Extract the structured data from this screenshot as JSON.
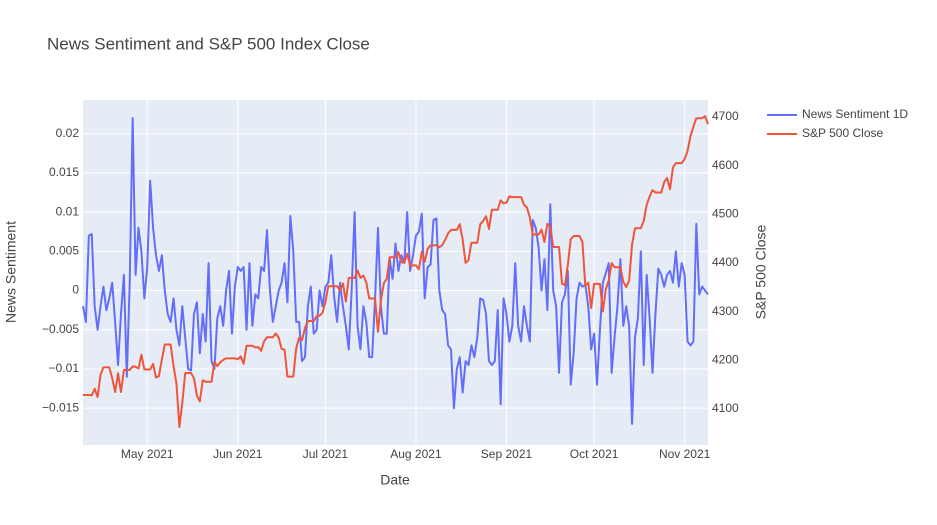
{
  "chart_data": {
    "type": "line",
    "title": "News Sentiment and S&P 500 Index Close",
    "x_label": "Date",
    "y_label": "News Sentiment",
    "y2_label": "S&P 500 Close",
    "x": [
      "2021-04-09",
      "2021-04-10",
      "2021-04-11",
      "2021-04-12",
      "2021-04-13",
      "2021-04-14",
      "2021-04-15",
      "2021-04-16",
      "2021-04-17",
      "2021-04-18",
      "2021-04-19",
      "2021-04-20",
      "2021-04-21",
      "2021-04-22",
      "2021-04-23",
      "2021-04-24",
      "2021-04-25",
      "2021-04-26",
      "2021-04-27",
      "2021-04-28",
      "2021-04-29",
      "2021-04-30",
      "2021-05-01",
      "2021-05-02",
      "2021-05-03",
      "2021-05-04",
      "2021-05-05",
      "2021-05-06",
      "2021-05-07",
      "2021-05-08",
      "2021-05-09",
      "2021-05-10",
      "2021-05-11",
      "2021-05-12",
      "2021-05-13",
      "2021-05-14",
      "2021-05-15",
      "2021-05-16",
      "2021-05-17",
      "2021-05-18",
      "2021-05-19",
      "2021-05-20",
      "2021-05-21",
      "2021-05-22",
      "2021-05-23",
      "2021-05-24",
      "2021-05-25",
      "2021-05-26",
      "2021-05-27",
      "2021-05-28",
      "2021-05-29",
      "2021-05-30",
      "2021-05-31",
      "2021-06-01",
      "2021-06-02",
      "2021-06-03",
      "2021-06-04",
      "2021-06-05",
      "2021-06-06",
      "2021-06-07",
      "2021-06-08",
      "2021-06-09",
      "2021-06-10",
      "2021-06-11",
      "2021-06-12",
      "2021-06-13",
      "2021-06-14",
      "2021-06-15",
      "2021-06-16",
      "2021-06-17",
      "2021-06-18",
      "2021-06-19",
      "2021-06-20",
      "2021-06-21",
      "2021-06-22",
      "2021-06-23",
      "2021-06-24",
      "2021-06-25",
      "2021-06-26",
      "2021-06-27",
      "2021-06-28",
      "2021-06-29",
      "2021-06-30",
      "2021-07-01",
      "2021-07-02",
      "2021-07-03",
      "2021-07-04",
      "2021-07-05",
      "2021-07-06",
      "2021-07-07",
      "2021-07-08",
      "2021-07-09",
      "2021-07-10",
      "2021-07-11",
      "2021-07-12",
      "2021-07-13",
      "2021-07-14",
      "2021-07-15",
      "2021-07-16",
      "2021-07-17",
      "2021-07-18",
      "2021-07-19",
      "2021-07-20",
      "2021-07-21",
      "2021-07-22",
      "2021-07-23",
      "2021-07-24",
      "2021-07-25",
      "2021-07-26",
      "2021-07-27",
      "2021-07-28",
      "2021-07-29",
      "2021-07-30",
      "2021-07-31",
      "2021-08-01",
      "2021-08-02",
      "2021-08-03",
      "2021-08-04",
      "2021-08-05",
      "2021-08-06",
      "2021-08-07",
      "2021-08-08",
      "2021-08-09",
      "2021-08-10",
      "2021-08-11",
      "2021-08-12",
      "2021-08-13",
      "2021-08-14",
      "2021-08-15",
      "2021-08-16",
      "2021-08-17",
      "2021-08-18",
      "2021-08-19",
      "2021-08-20",
      "2021-08-21",
      "2021-08-22",
      "2021-08-23",
      "2021-08-24",
      "2021-08-25",
      "2021-08-26",
      "2021-08-27",
      "2021-08-28",
      "2021-08-29",
      "2021-08-30",
      "2021-08-31",
      "2021-09-01",
      "2021-09-02",
      "2021-09-03",
      "2021-09-04",
      "2021-09-05",
      "2021-09-06",
      "2021-09-07",
      "2021-09-08",
      "2021-09-09",
      "2021-09-10",
      "2021-09-11",
      "2021-09-12",
      "2021-09-13",
      "2021-09-14",
      "2021-09-15",
      "2021-09-16",
      "2021-09-17",
      "2021-09-18",
      "2021-09-19",
      "2021-09-20",
      "2021-09-21",
      "2021-09-22",
      "2021-09-23",
      "2021-09-24",
      "2021-09-25",
      "2021-09-26",
      "2021-09-27",
      "2021-09-28",
      "2021-09-29",
      "2021-09-30",
      "2021-10-01",
      "2021-10-02",
      "2021-10-03",
      "2021-10-04",
      "2021-10-05",
      "2021-10-06",
      "2021-10-07",
      "2021-10-08",
      "2021-10-09",
      "2021-10-10",
      "2021-10-11",
      "2021-10-12",
      "2021-10-13",
      "2021-10-14",
      "2021-10-15",
      "2021-10-16",
      "2021-10-17",
      "2021-10-18",
      "2021-10-19",
      "2021-10-20",
      "2021-10-21",
      "2021-10-22",
      "2021-10-23",
      "2021-10-24",
      "2021-10-25",
      "2021-10-26",
      "2021-10-27",
      "2021-10-28",
      "2021-10-29",
      "2021-10-30",
      "2021-10-31",
      "2021-11-01",
      "2021-11-02",
      "2021-11-03",
      "2021-11-04",
      "2021-11-05",
      "2021-11-06",
      "2021-11-07",
      "2021-11-08",
      "2021-11-09"
    ],
    "series": [
      {
        "name": "News Sentiment 1D",
        "color": "#636efa",
        "values": [
          -0.002,
          -0.004,
          0.007,
          0.0072,
          -0.002,
          -0.005,
          -0.002,
          0.0005,
          -0.0025,
          -0.001,
          0.001,
          -0.004,
          -0.0095,
          -0.003,
          0.002,
          -0.011,
          0.001,
          0.022,
          0.002,
          0.008,
          0.005,
          -0.001,
          0.003,
          0.014,
          0.008,
          0.0045,
          0.0025,
          0.0045,
          0,
          -0.003,
          -0.004,
          -0.001,
          -0.005,
          -0.007,
          -0.002,
          -0.006,
          -0.01,
          -0.0102,
          -0.003,
          -0.0015,
          -0.008,
          -0.003,
          -0.0065,
          0.0035,
          -0.009,
          -0.01,
          -0.0035,
          -0.002,
          -0.0045,
          0,
          0.0025,
          -0.0055,
          0.0005,
          0.003,
          0.0025,
          0.003,
          -0.005,
          0.0035,
          -0.0045,
          -0.0005,
          -0.001,
          0.003,
          0.0025,
          0.0077,
          0,
          -0.004,
          -0.002,
          0,
          0.001,
          0.0035,
          -0.0015,
          0.0095,
          0.005,
          -0.004,
          -0.004,
          -0.009,
          -0.0085,
          -0.002,
          0.0005,
          -0.0055,
          -0.005,
          0,
          -0.002,
          0.0005,
          0.001,
          0.0045,
          -0.0008,
          -0.004,
          0.001,
          -0.002,
          -0.0045,
          -0.0075,
          0.0002,
          0.01,
          -0.0045,
          -0.0075,
          -0.002,
          -0.004,
          -0.0085,
          -0.0085,
          -0.001,
          0.008,
          -0.002,
          -0.0055,
          -0.0055,
          0.004,
          0.0015,
          0.006,
          0.0025,
          0.0045,
          0.0035,
          0.01,
          0.0025,
          0.0045,
          0.007,
          0.0075,
          0.0098,
          -0.001,
          0.003,
          0.0033,
          0.009,
          0.0092,
          0,
          -0.0025,
          -0.003,
          -0.007,
          -0.0075,
          -0.015,
          -0.01,
          -0.0085,
          -0.013,
          -0.009,
          -0.0095,
          -0.007,
          -0.0085,
          -0.006,
          -0.001,
          -0.0012,
          -0.003,
          -0.009,
          -0.0095,
          -0.009,
          -0.0025,
          -0.0145,
          -0.001,
          -0.003,
          -0.0065,
          -0.0045,
          0.0035,
          -0.0045,
          -0.0065,
          -0.002,
          -0.0045,
          -0.0065,
          0.009,
          0.008,
          0.0055,
          0,
          0.004,
          -0.0025,
          0.011,
          0,
          -0.002,
          -0.0105,
          -0.0015,
          -0.0005,
          0.0025,
          -0.012,
          -0.008,
          -0.001,
          0.001,
          0.0005,
          0.0007,
          -0.002,
          -0.0075,
          -0.0055,
          -0.012,
          -0.005,
          0.001,
          0.0022,
          0.0035,
          -0.0105,
          -0.006,
          -0.002,
          0.004,
          -0.0045,
          -0.002,
          -0.0045,
          -0.017,
          -0.006,
          -0.0035,
          0.005,
          -0.0095,
          0.002,
          -0.0035,
          -0.0105,
          -0.003,
          0.0028,
          0.002,
          0.0005,
          0.002,
          0.0025,
          0.001,
          0.005,
          0.0005,
          0.0035,
          0.002,
          -0.0065,
          -0.007,
          -0.0065,
          0.0085,
          -0.0005,
          0.0005,
          0,
          -0.0005
        ]
      },
      {
        "name": "S&P 500 Close",
        "color": "#ef553b",
        "axis": "y2",
        "values": [
          4128.8,
          4128.8,
          4128.8,
          4127.99,
          4141.59,
          4124.66,
          4170.42,
          4185.47,
          4185.47,
          4185.47,
          4163.26,
          4134.94,
          4173.42,
          4134.98,
          4180.17,
          4180.17,
          4180.17,
          4187.62,
          4186.72,
          4183.18,
          4211.47,
          4181.17,
          4181.17,
          4181.17,
          4192.66,
          4164.66,
          4167.59,
          4201.62,
          4232.6,
          4232.6,
          4232.6,
          4188.43,
          4152.1,
          4063.04,
          4112.5,
          4173.85,
          4173.85,
          4173.85,
          4163.29,
          4127.83,
          4115.68,
          4159.12,
          4155.86,
          4155.86,
          4155.86,
          4197.05,
          4188.13,
          4195.99,
          4200.88,
          4204.11,
          4204.11,
          4204.11,
          4204.11,
          4202.04,
          4208.12,
          4192.85,
          4229.89,
          4229.89,
          4229.89,
          4226.52,
          4227.26,
          4219.55,
          4239.18,
          4247.44,
          4247.44,
          4247.44,
          4255.15,
          4246.59,
          4223.7,
          4221.86,
          4166.45,
          4166.45,
          4166.45,
          4224.79,
          4246.44,
          4241.84,
          4266.49,
          4280.7,
          4280.7,
          4280.7,
          4290.61,
          4291.8,
          4297.5,
          4319.94,
          4352.34,
          4352.34,
          4352.34,
          4352.34,
          4343.54,
          4358.13,
          4320.82,
          4369.55,
          4369.55,
          4369.55,
          4384.63,
          4369.21,
          4374.3,
          4360.03,
          4327.16,
          4327.16,
          4327.16,
          4258.49,
          4323.06,
          4358.69,
          4367.48,
          4411.79,
          4411.79,
          4411.79,
          4422.3,
          4401.46,
          4400.64,
          4419.15,
          4395.26,
          4395.26,
          4395.26,
          4387.16,
          4423.15,
          4402.66,
          4429.1,
          4436.52,
          4436.52,
          4436.52,
          4432.35,
          4436.75,
          4447.7,
          4460.83,
          4468,
          4468,
          4468,
          4479.71,
          4448.08,
          4400.27,
          4405.8,
          4441.67,
          4441.67,
          4441.67,
          4479.53,
          4486.23,
          4496.19,
          4470,
          4509.37,
          4509.37,
          4509.37,
          4528.79,
          4522.68,
          4524.09,
          4536.95,
          4535.43,
          4535.43,
          4535.43,
          4535.43,
          4520.03,
          4514.07,
          4493.28,
          4458.58,
          4458.58,
          4458.58,
          4468.73,
          4443.05,
          4480.7,
          4473.75,
          4432.99,
          4432.99,
          4432.99,
          4357.73,
          4354.19,
          4395.64,
          4448.98,
          4455.48,
          4455.48,
          4455.48,
          4443.11,
          4352.63,
          4359.46,
          4307.54,
          4357.04,
          4357.04,
          4357.04,
          4300.46,
          4345.72,
          4363.55,
          4399.76,
          4391.34,
          4391.34,
          4391.34,
          4361.19,
          4350.65,
          4363.8,
          4438.26,
          4471.37,
          4471.37,
          4471.37,
          4486.46,
          4519.63,
          4536.19,
          4549.78,
          4544.9,
          4544.9,
          4544.9,
          4566.48,
          4574.79,
          4551.68,
          4596.42,
          4605.38,
          4605.38,
          4605.38,
          4613.67,
          4630.65,
          4660.57,
          4680.06,
          4697.53,
          4697.53,
          4697.53,
          4701.7,
          4685.25
        ]
      }
    ],
    "xlim": [
      "2021-04-09",
      "2021-11-09"
    ],
    "xticks": [
      {
        "value": "2021-05-01",
        "label": "May 2021"
      },
      {
        "value": "2021-06-01",
        "label": "Jun 2021"
      },
      {
        "value": "2021-07-01",
        "label": "Jul 2021"
      },
      {
        "value": "2021-08-01",
        "label": "Aug 2021"
      },
      {
        "value": "2021-09-01",
        "label": "Sep 2021"
      },
      {
        "value": "2021-10-01",
        "label": "Oct 2021"
      },
      {
        "value": "2021-11-01",
        "label": "Nov 2021"
      }
    ],
    "ylim": [
      -0.0197,
      0.0243
    ],
    "yticks": [
      {
        "value": -0.015,
        "label": "−0.015"
      },
      {
        "value": -0.01,
        "label": "−0.01"
      },
      {
        "value": -0.005,
        "label": "−0.005"
      },
      0,
      0.005,
      0.01,
      0.015,
      0.02
    ],
    "y2lim": [
      4026,
      4735
    ],
    "y2ticks": [
      4100,
      4200,
      4300,
      4400,
      4500,
      4600,
      4700
    ],
    "grid": true,
    "legend": "right",
    "background": "#e5ecf6"
  }
}
